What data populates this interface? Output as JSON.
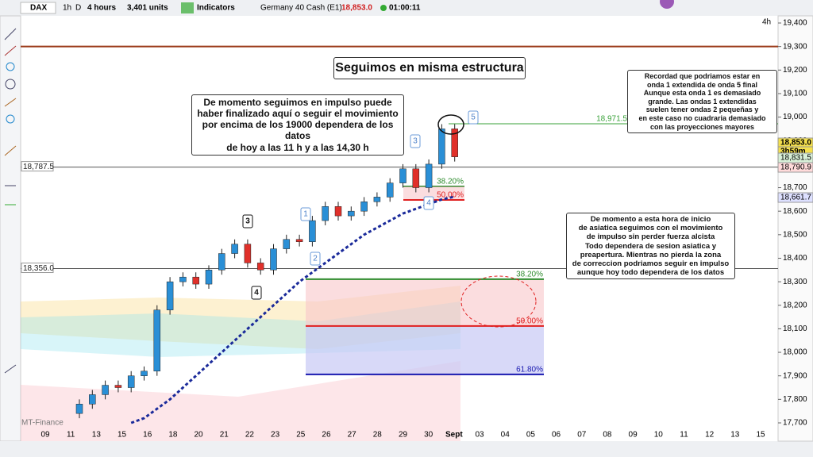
{
  "toolbar": {
    "symbol": "DAX",
    "period_1h": "1h",
    "period_d": "D",
    "timeframe": "4 hours",
    "units": "3,401 units",
    "indicators": "Indicators",
    "instrument": "Germany 40 Cash (E1)",
    "last_price": "18,853.0",
    "clock": "01:00:11"
  },
  "chart_data": {
    "type": "candlestick",
    "timeframe_label": "4h",
    "x_labels": [
      "09",
      "11",
      "13",
      "15",
      "16",
      "18",
      "20",
      "21",
      "22",
      "23",
      "25",
      "26",
      "27",
      "28",
      "29",
      "30",
      "Sept",
      "03",
      "04",
      "05",
      "06",
      "07",
      "08",
      "09",
      "10",
      "11",
      "12",
      "13",
      "15"
    ],
    "open": [
      17740,
      17780,
      17820,
      17860,
      17850,
      17900,
      17920,
      18180,
      18300,
      18320,
      18290,
      18350,
      18420,
      18460,
      18380,
      18350,
      18440,
      18480,
      18470,
      18560,
      18620,
      18580,
      18600,
      18640,
      18660,
      18720,
      18780,
      18700,
      18800,
      18950
    ],
    "high": [
      17800,
      17840,
      17880,
      17880,
      17920,
      17940,
      18200,
      18320,
      18340,
      18340,
      18370,
      18440,
      18480,
      18480,
      18400,
      18460,
      18500,
      18500,
      18580,
      18640,
      18640,
      18620,
      18660,
      18680,
      18740,
      18800,
      18800,
      18820,
      18970,
      18970
    ],
    "low": [
      17720,
      17760,
      17800,
      17830,
      17830,
      17880,
      17900,
      18160,
      18280,
      18270,
      18270,
      18330,
      18400,
      18360,
      18330,
      18330,
      18420,
      18450,
      18450,
      18540,
      18560,
      18560,
      18580,
      18620,
      18640,
      18700,
      18680,
      18680,
      18780,
      18811
    ],
    "close": [
      17780,
      17820,
      17860,
      17850,
      17900,
      17920,
      18180,
      18300,
      18320,
      18290,
      18350,
      18420,
      18460,
      18380,
      18350,
      18440,
      18480,
      18470,
      18560,
      18620,
      18580,
      18600,
      18640,
      18660,
      18720,
      18780,
      18700,
      18800,
      18950,
      18831
    ],
    "up_color": "#2a8fd6",
    "down_color": "#e0302a",
    "moving_average": {
      "color": "#1a2a9a",
      "values": [
        null,
        null,
        null,
        null,
        17700,
        17720,
        17760,
        17800,
        17850,
        17900,
        17950,
        18000,
        18050,
        18100,
        18150,
        18200,
        18250,
        18300,
        18340,
        18380,
        18420,
        18460,
        18500,
        18530,
        18560,
        18590,
        18610,
        18630,
        18650,
        18661.7
      ]
    },
    "ylim": [
      17700,
      19400
    ],
    "yticks": [
      {
        "value": 17700,
        "label": "17,700"
      },
      {
        "value": 17800,
        "label": "17,800"
      },
      {
        "value": 17900,
        "label": "17,900"
      },
      {
        "value": 18000,
        "label": "18,000"
      },
      {
        "value": 18100,
        "label": "18,100"
      },
      {
        "value": 18200,
        "label": "18,200"
      },
      {
        "value": 18300,
        "label": "18,300"
      },
      {
        "value": 18400,
        "label": "18,400"
      },
      {
        "value": 18500,
        "label": "18,500"
      },
      {
        "value": 18600,
        "label": "18,600"
      },
      {
        "value": 18700,
        "label": "18,700"
      },
      {
        "value": 18800,
        "label": "18,800"
      },
      {
        "value": 18900,
        "label": "18,900"
      },
      {
        "value": 19000,
        "label": "19,000"
      },
      {
        "value": 19100,
        "label": "19,100"
      },
      {
        "value": 19200,
        "label": "19,200"
      },
      {
        "value": 19300,
        "label": "19,300"
      },
      {
        "value": 19400,
        "label": "19,400"
      }
    ],
    "levels": [
      {
        "value": 19300,
        "color": "#9b3b1a"
      },
      {
        "value": 18787.5,
        "label": "18,787.5",
        "color": "#555555"
      },
      {
        "value": 18356,
        "label": "18,356.0",
        "color": "#555555"
      },
      {
        "value": 18971.5,
        "label": "18,971.5",
        "color": "#3aa23a"
      }
    ],
    "price_labels": [
      {
        "value": 18853,
        "label": "18,853.0",
        "color": "#f4e04d"
      },
      {
        "label": "3h59m",
        "color": "#f4e04d"
      },
      {
        "value": 18831.5,
        "label": "18,831.5",
        "color": "#d8f0d8"
      },
      {
        "value": 18790.9,
        "label": "18,790.9",
        "color": "#ffdada"
      },
      {
        "value": 18661.7,
        "label": "18,661.7",
        "color": "#dde0ff"
      }
    ],
    "fib_large": [
      {
        "value": 18311,
        "label": "38.20%",
        "color": "#2e8b2e"
      },
      {
        "value": 18112,
        "label": "50.00%",
        "color": "#e02020"
      },
      {
        "value": 17906,
        "label": "61.80%",
        "color": "#1a1ab0"
      }
    ],
    "fib_small": [
      {
        "value": 18705,
        "label": "38.20%",
        "color": "#2e8b2e"
      },
      {
        "value": 18648,
        "label": "50.00%",
        "color": "#e02020"
      }
    ]
  },
  "annotations": {
    "headline": "Seguimos en misma estructura",
    "note_left": [
      "De momento seguimos en impulso puede",
      "haber finalizado aquí o seguir el movimiento",
      "por encima de los 19000 dependera de los datos",
      "de hoy a las 11 h y a las 14,30 h"
    ],
    "note_top_right": [
      "Recordad que podriamos estar en",
      "onda 1 extendida de onda 5 final",
      "Aunque esta onda 1 es demasiado",
      "grande. Las ondas 1 extendidas",
      "suelen tener ondas 2 pequeñas y",
      "en este caso no cuadraria demasiado",
      "con las proyecciones mayores"
    ],
    "note_right": [
      "De momento a esta hora de inicio",
      "de asiatica seguimos con el movimiento",
      "de impulso sin perder fuerza alcista",
      "Todo dependera de sesion asiatica y",
      "preapertura. Mientras no pierda la zona",
      "de correccion podriamos seguir en impulso",
      "aunque hoy todo dependera de los datos"
    ],
    "waves": [
      "3",
      "4",
      "1",
      "2",
      "3",
      "4",
      "5"
    ],
    "watermark": "MT-Finance"
  }
}
